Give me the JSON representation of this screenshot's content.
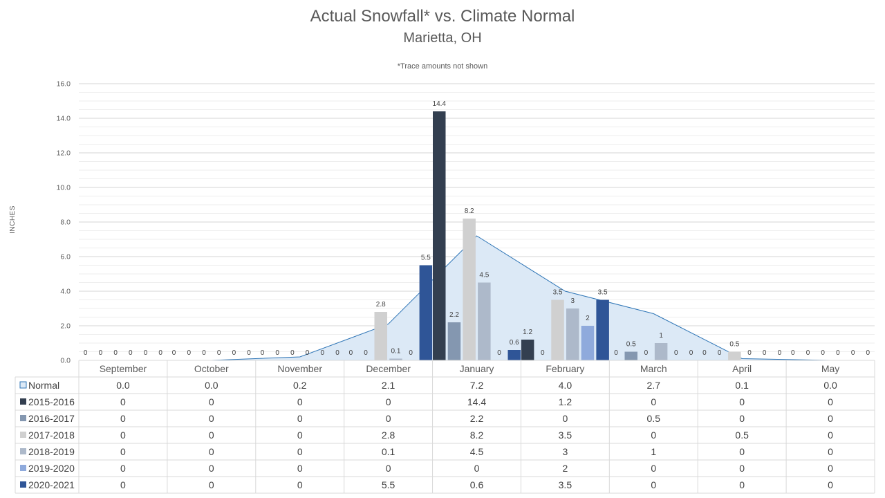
{
  "chart_data": {
    "type": "bar",
    "title": "Actual Snowfall* vs. Climate Normal",
    "subtitle": "Marietta, OH",
    "note": "*Trace amounts not shown",
    "ylabel": "INCHES",
    "ylim": [
      0,
      16
    ],
    "yticks": [
      "0.0",
      "2.0",
      "4.0",
      "6.0",
      "8.0",
      "10.0",
      "12.0",
      "14.0",
      "16.0"
    ],
    "ytick_values": [
      0,
      2,
      4,
      6,
      8,
      10,
      12,
      14,
      16
    ],
    "grid": "horizontal",
    "categories": [
      "September",
      "October",
      "November",
      "December",
      "January",
      "February",
      "March",
      "April",
      "May"
    ],
    "normal": {
      "name": "Normal",
      "type": "area",
      "color": "#dce9f6",
      "line_color": "#2e75b6",
      "values": [
        0.0,
        0.0,
        0.2,
        2.1,
        7.2,
        4.0,
        2.7,
        0.1,
        0.0
      ],
      "labels": [
        "0.0",
        "0.0",
        "0.2",
        "2.1",
        "7.2",
        "4.0",
        "2.7",
        "0.1",
        "0.0"
      ]
    },
    "series": [
      {
        "name": "2015-2016",
        "color": "#333f50",
        "values": [
          0,
          0,
          0,
          0,
          14.4,
          1.2,
          0,
          0,
          0
        ],
        "labels": [
          "0",
          "0",
          "0",
          "0",
          "14.4",
          "1.2",
          "0",
          "0",
          "0"
        ]
      },
      {
        "name": "2016-2017",
        "color": "#8497b0",
        "values": [
          0,
          0,
          0,
          0,
          2.2,
          0,
          0.5,
          0,
          0
        ],
        "labels": [
          "0",
          "0",
          "0",
          "0",
          "2.2",
          "0",
          "0.5",
          "0",
          "0"
        ]
      },
      {
        "name": "2017-2018",
        "color": "#d0d0d0",
        "values": [
          0,
          0,
          0,
          2.8,
          8.2,
          3.5,
          0,
          0.5,
          0
        ],
        "labels": [
          "0",
          "0",
          "0",
          "2.8",
          "8.2",
          "3.5",
          "0",
          "0.5",
          "0"
        ]
      },
      {
        "name": "2018-2019",
        "color": "#adb9ca",
        "values": [
          0,
          0,
          0,
          0.1,
          4.5,
          3,
          1,
          0,
          0
        ],
        "labels": [
          "0",
          "0",
          "0",
          "0.1",
          "4.5",
          "3",
          "1",
          "0",
          "0"
        ]
      },
      {
        "name": "2019-2020",
        "color": "#8faadc",
        "values": [
          0,
          0,
          0,
          0,
          0,
          2,
          0,
          0,
          0
        ],
        "labels": [
          "0",
          "0",
          "0",
          "0",
          "0",
          "2",
          "0",
          "0",
          "0"
        ]
      },
      {
        "name": "2020-2021",
        "color": "#2f5597",
        "values": [
          0,
          0,
          0,
          5.5,
          0.6,
          3.5,
          0,
          0,
          0
        ],
        "labels": [
          "0",
          "0",
          "0",
          "5.5",
          "0.6",
          "3.5",
          "0",
          "0",
          "0"
        ]
      }
    ]
  }
}
